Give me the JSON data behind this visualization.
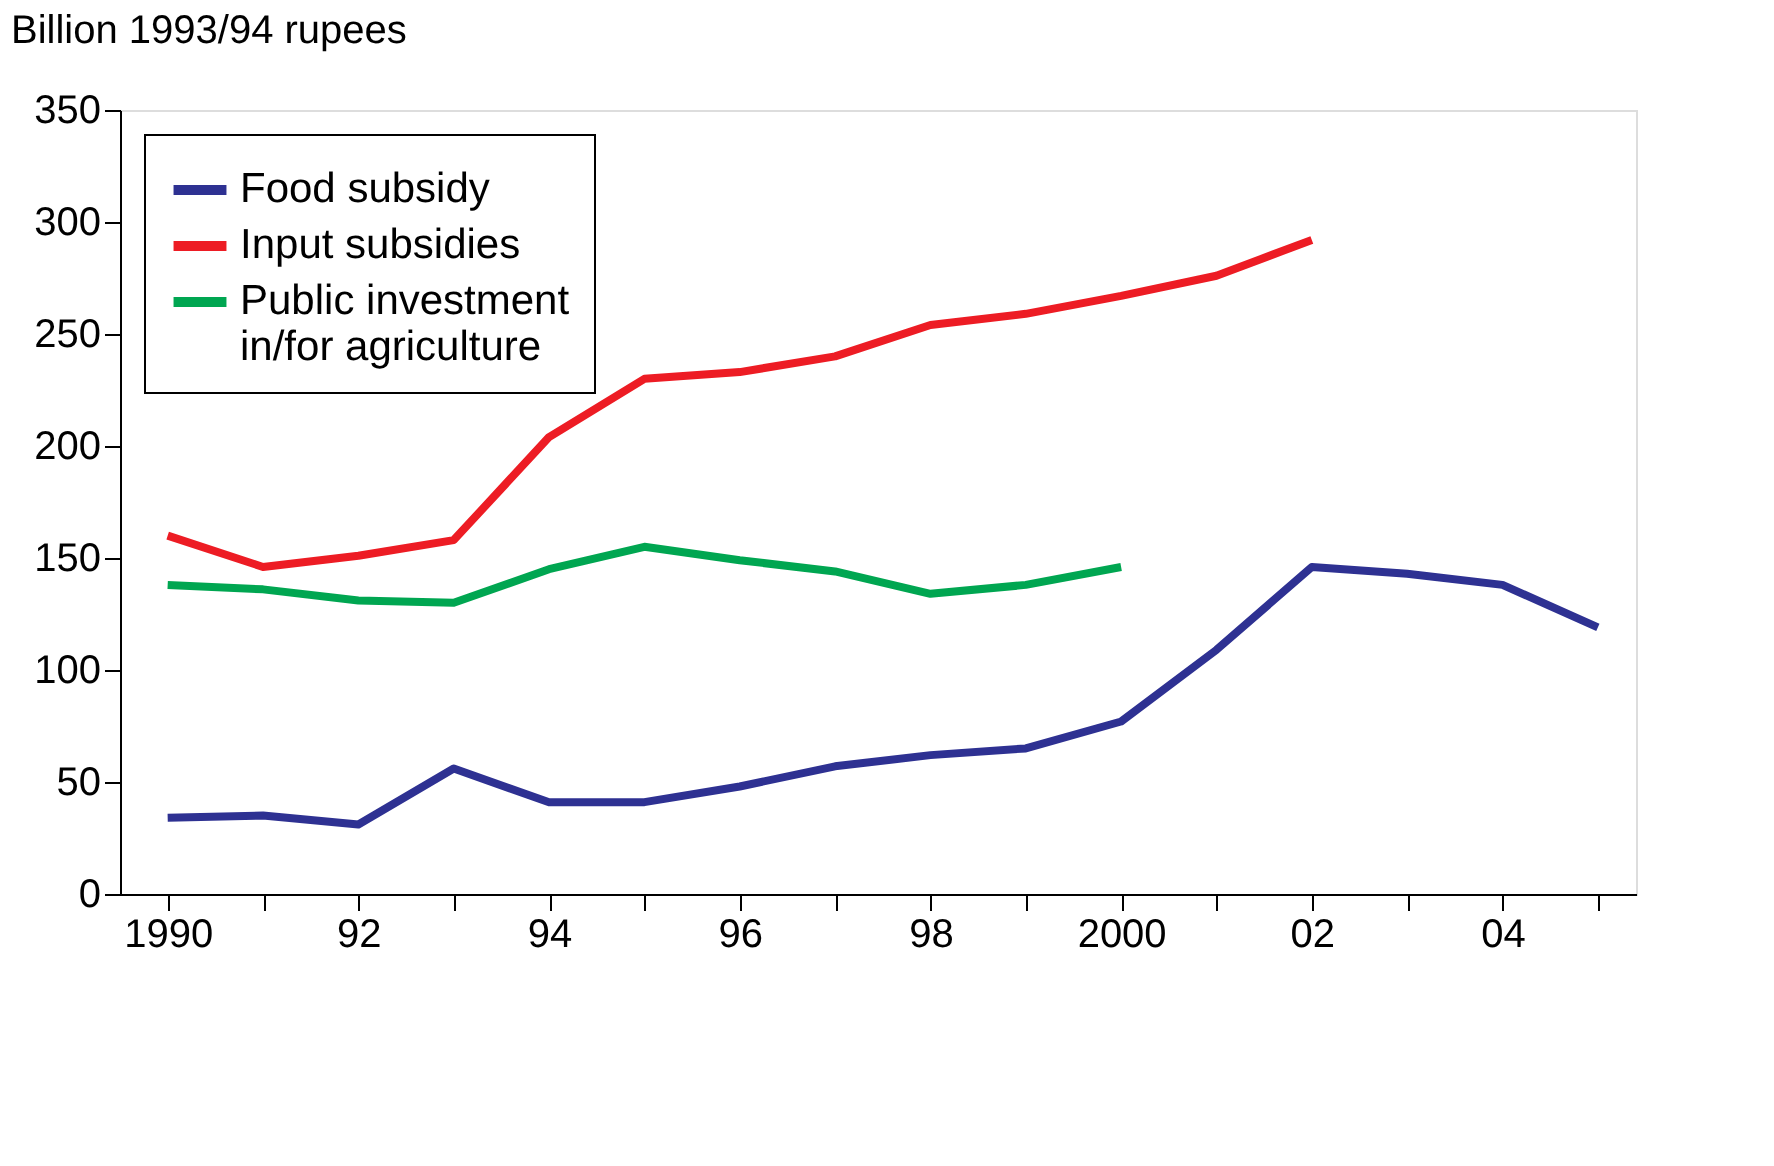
{
  "chart_data": {
    "type": "line",
    "ylabel": "Billion 1993/94 rupees",
    "x": [
      1990,
      1991,
      1992,
      1993,
      1994,
      1995,
      1996,
      1997,
      1998,
      1999,
      2000,
      2001,
      2002,
      2003,
      2004,
      2005
    ],
    "series": [
      {
        "name": "Food subsidy",
        "color": "#2e3192",
        "values": [
          34,
          35,
          31,
          56,
          41,
          41,
          48,
          57,
          62,
          65,
          77,
          109,
          146,
          143,
          138,
          119
        ]
      },
      {
        "name": "Input subsidies",
        "color": "#ed1c24",
        "values": [
          160,
          146,
          151,
          158,
          204,
          230,
          233,
          240,
          254,
          259,
          267,
          276,
          292,
          null,
          null,
          null
        ]
      },
      {
        "name": "Public investment in/for agriculture",
        "color": "#00a651",
        "values": [
          138,
          136,
          131,
          130,
          145,
          155,
          149,
          144,
          134,
          138,
          146,
          null,
          null,
          null,
          null,
          null
        ]
      }
    ],
    "xlim": [
      1989.5,
      2005.4
    ],
    "xticks": [
      {
        "value": 1990,
        "label": "1990"
      },
      {
        "value": 1991,
        "label": null
      },
      {
        "value": 1992,
        "label": "92"
      },
      {
        "value": 1993,
        "label": null
      },
      {
        "value": 1994,
        "label": "94"
      },
      {
        "value": 1995,
        "label": null
      },
      {
        "value": 1996,
        "label": "96"
      },
      {
        "value": 1997,
        "label": null
      },
      {
        "value": 1998,
        "label": "98"
      },
      {
        "value": 1999,
        "label": null
      },
      {
        "value": 2000,
        "label": "2000"
      },
      {
        "value": 2001,
        "label": null
      },
      {
        "value": 2002,
        "label": "02"
      },
      {
        "value": 2003,
        "label": null
      },
      {
        "value": 2004,
        "label": "04"
      },
      {
        "value": 2005,
        "label": null
      }
    ],
    "ylim": [
      0,
      350
    ],
    "yticks": [
      0,
      50,
      100,
      150,
      200,
      250,
      300,
      350
    ],
    "grid": false,
    "legend": "top left",
    "marker": "none",
    "line_style": "solid"
  }
}
